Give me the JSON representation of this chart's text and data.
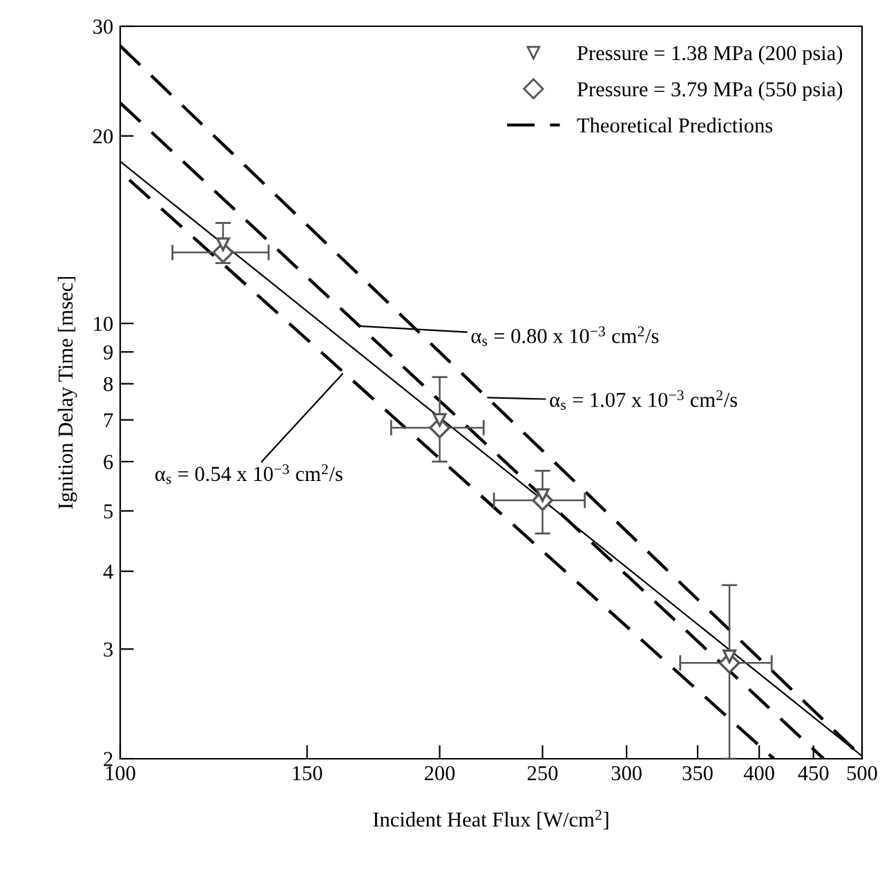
{
  "chart_data": {
    "type": "scatter",
    "xlabel": "Incident Heat Flux [W/cm$^{2}$]",
    "ylabel": "Ignition Delay Time [msec]",
    "log": "xy",
    "xlim": [
      100,
      500
    ],
    "xticks": [
      100,
      150,
      200,
      250,
      300,
      350,
      400,
      450,
      500
    ],
    "ylim": [
      2,
      30
    ],
    "yticks": [
      2,
      3,
      4,
      5,
      6,
      7,
      8,
      9,
      10,
      20,
      30
    ],
    "grid": false,
    "legend": "top right",
    "series": [
      {
        "name": "Pressure = 1.38 MPa (200 psia)",
        "marker": "triangle",
        "color": "#555555",
        "x": [
          125,
          200,
          250,
          375
        ],
        "values": [
          13.4,
          7.0,
          5.3,
          2.92
        ]
      },
      {
        "name": "Pressure = 3.79 MPa (550 psia)",
        "marker": "diamond",
        "color": "#555555",
        "x": [
          125,
          200,
          250,
          375
        ],
        "values": [
          13.0,
          6.8,
          5.2,
          2.85
        ],
        "errors": [
          [
            12.5,
            14.5
          ],
          [
            6.0,
            8.2
          ],
          [
            4.6,
            5.8
          ],
          [
            2.0,
            3.8
          ]
        ],
        "xerrors": [
          [
            112,
            138
          ],
          [
            180,
            220
          ],
          [
            225,
            274
          ],
          [
            337,
            411
          ]
        ]
      },
      {
        "name": "Theoretical Predictions",
        "type": "line",
        "line_style": "dashed",
        "color": "#000000",
        "x": [
          100,
          493
        ],
        "values": [
          27.9,
          2.06
        ]
      },
      {
        "type": "line",
        "line_style": "dashed",
        "color": "#000000",
        "x": [
          100,
          460
        ],
        "values": [
          22.6,
          2.0
        ]
      },
      {
        "type": "line",
        "line_style": "dashed",
        "color": "#000000",
        "x": [
          102,
          413
        ],
        "values": [
          17.0,
          2.0
        ]
      },
      {
        "type": "line",
        "line_style": "solid",
        "color": "#000000",
        "x": [
          100,
          500
        ],
        "values": [
          18.2,
          2.02
        ]
      }
    ],
    "annotations": [
      {
        "text": "α$_{s}$ = 0.80 x 10$^{−3}$ cm$^{2}$/s",
        "x": 168,
        "y": 9.9
      },
      {
        "text": "α$_{s}$ = 1.07 x 10$^{−3}$ cm$^{2}$/s",
        "x": 222,
        "y": 7.6
      },
      {
        "text": "α$_{s}$ = 0.54 x 10$^{−3}$ cm$^{2}$/s",
        "x": 162,
        "y": 8.3
      }
    ]
  }
}
